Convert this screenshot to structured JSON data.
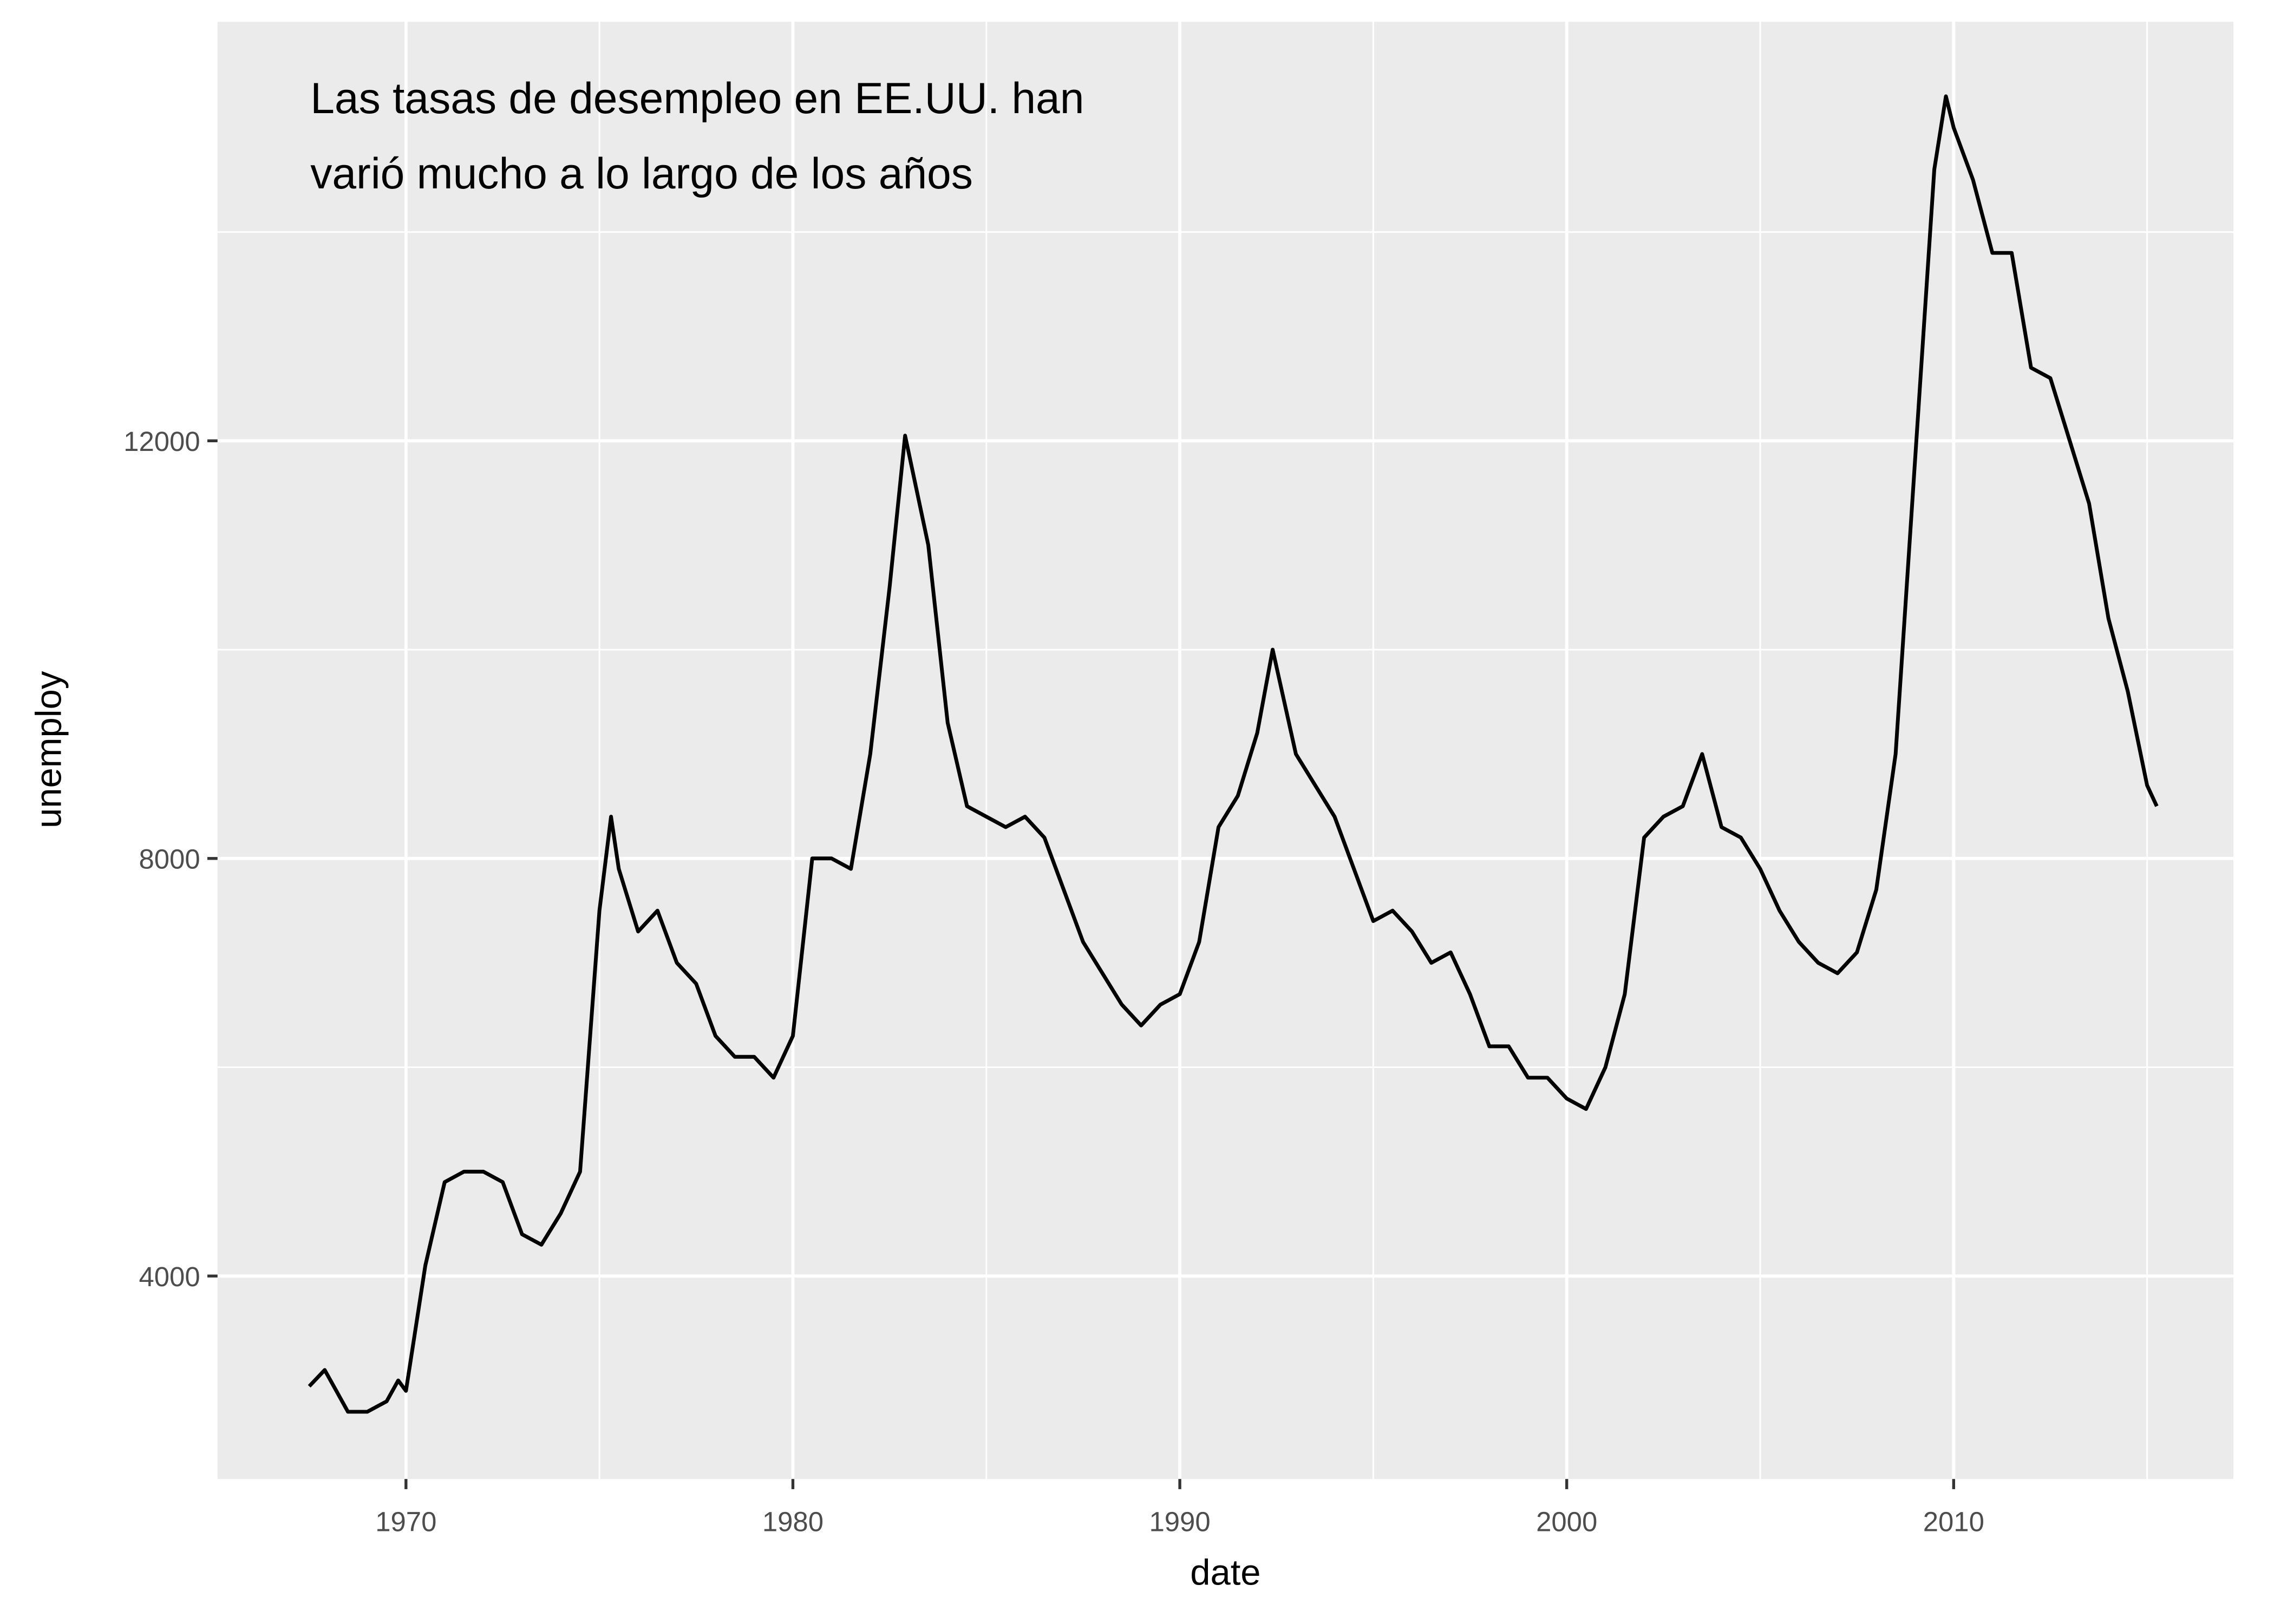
{
  "chart_data": {
    "type": "line",
    "annotation": [
      "Las tasas de desempleo en EE.UU. han",
      "varió mucho a lo largo de los años"
    ],
    "x_label": "date",
    "y_label": "unemploy",
    "color": "#000000",
    "grid": true,
    "xlim": [
      1965.13,
      2017.23
    ],
    "ylim": [
      2056,
      16014
    ],
    "xticks": [
      1970,
      1980,
      1990,
      2000,
      2010
    ],
    "yticks": [
      4000,
      8000,
      12000
    ],
    "x": [
      1967.5,
      1967.9,
      1968.2,
      1968.5,
      1969,
      1969.5,
      1969.8,
      1970,
      1970.5,
      1971,
      1971.5,
      1972,
      1972.5,
      1973,
      1973.5,
      1974,
      1974.5,
      1975,
      1975.3,
      1975.5,
      1976,
      1976.5,
      1977,
      1977.5,
      1978,
      1978.5,
      1979,
      1979.5,
      1980,
      1980.5,
      1981,
      1981.5,
      1982,
      1982.5,
      1982.9,
      1983.5,
      1984,
      1984.5,
      1985,
      1985.5,
      1986,
      1986.5,
      1987,
      1987.5,
      1988,
      1988.5,
      1989,
      1989.5,
      1990,
      1990.5,
      1991,
      1991.5,
      1992,
      1992.4,
      1993,
      1993.5,
      1994,
      1994.5,
      1995,
      1995.5,
      1996,
      1996.5,
      1997,
      1997.5,
      1998,
      1998.5,
      1999,
      1999.5,
      2000,
      2000.5,
      2001,
      2001.5,
      2002,
      2002.5,
      2003,
      2003.5,
      2004,
      2004.5,
      2005,
      2005.5,
      2006,
      2006.5,
      2007,
      2007.5,
      2008,
      2008.5,
      2009,
      2009.5,
      2009.8,
      2010,
      2010.5,
      2011,
      2011.5,
      2012,
      2012.5,
      2013,
      2013.5,
      2014,
      2014.5,
      2015,
      2015.25
    ],
    "values": [
      2944,
      3100,
      2900,
      2700,
      2700,
      2800,
      3000,
      2900,
      4100,
      4900,
      5000,
      5000,
      4900,
      4400,
      4300,
      4600,
      5000,
      7500,
      8400,
      7900,
      7300,
      7500,
      7000,
      6800,
      6300,
      6100,
      6100,
      5900,
      6300,
      8000,
      8000,
      7900,
      9000,
      10600,
      12050,
      11000,
      9300,
      8500,
      8400,
      8300,
      8400,
      8200,
      7700,
      7200,
      6900,
      6600,
      6400,
      6600,
      6700,
      7200,
      8300,
      8600,
      9200,
      10000,
      9000,
      8700,
      8400,
      7900,
      7400,
      7500,
      7300,
      7000,
      7100,
      6700,
      6200,
      6200,
      5900,
      5900,
      5700,
      5600,
      6000,
      6700,
      8200,
      8400,
      8500,
      9000,
      8300,
      8200,
      7900,
      7500,
      7200,
      7000,
      6900,
      7100,
      7700,
      9000,
      11800,
      14600,
      15300,
      15000,
      14500,
      13800,
      13800,
      12700,
      12600,
      12000,
      11400,
      10300,
      9600,
      8700,
      8500
    ]
  }
}
